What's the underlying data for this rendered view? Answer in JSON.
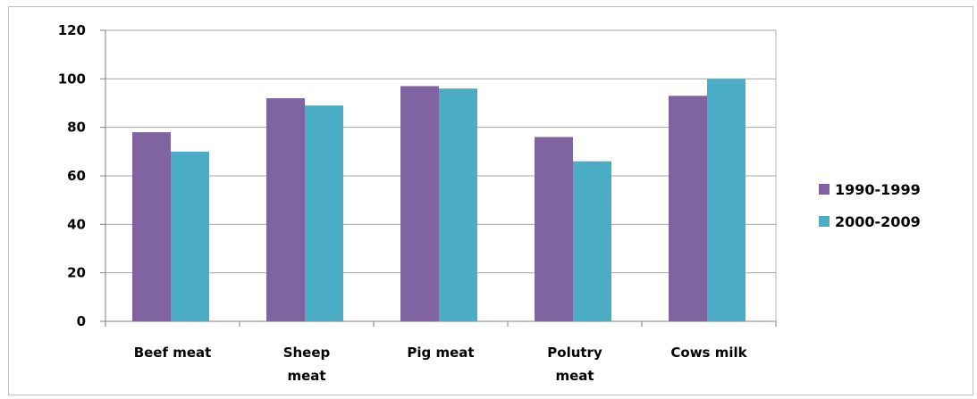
{
  "chart_data": {
    "type": "bar",
    "categories": [
      [
        "Beef meat"
      ],
      [
        "Sheep",
        "meat"
      ],
      [
        "Pig meat"
      ],
      [
        "Polutry",
        "meat"
      ],
      [
        "Cows milk"
      ]
    ],
    "series": [
      {
        "name": "1990-1999",
        "values": [
          78,
          92,
          97,
          76,
          93
        ],
        "color": "#8064a2"
      },
      {
        "name": "2000-2009",
        "values": [
          70,
          89,
          96,
          66,
          100
        ],
        "color": "#4bacc6"
      }
    ],
    "ylim": [
      0,
      120
    ],
    "yticks": [
      "0",
      "20",
      "40",
      "60",
      "80",
      "100",
      "120"
    ],
    "grid": true,
    "legend_position": "right",
    "title": "",
    "xlabel": "",
    "ylabel": ""
  }
}
